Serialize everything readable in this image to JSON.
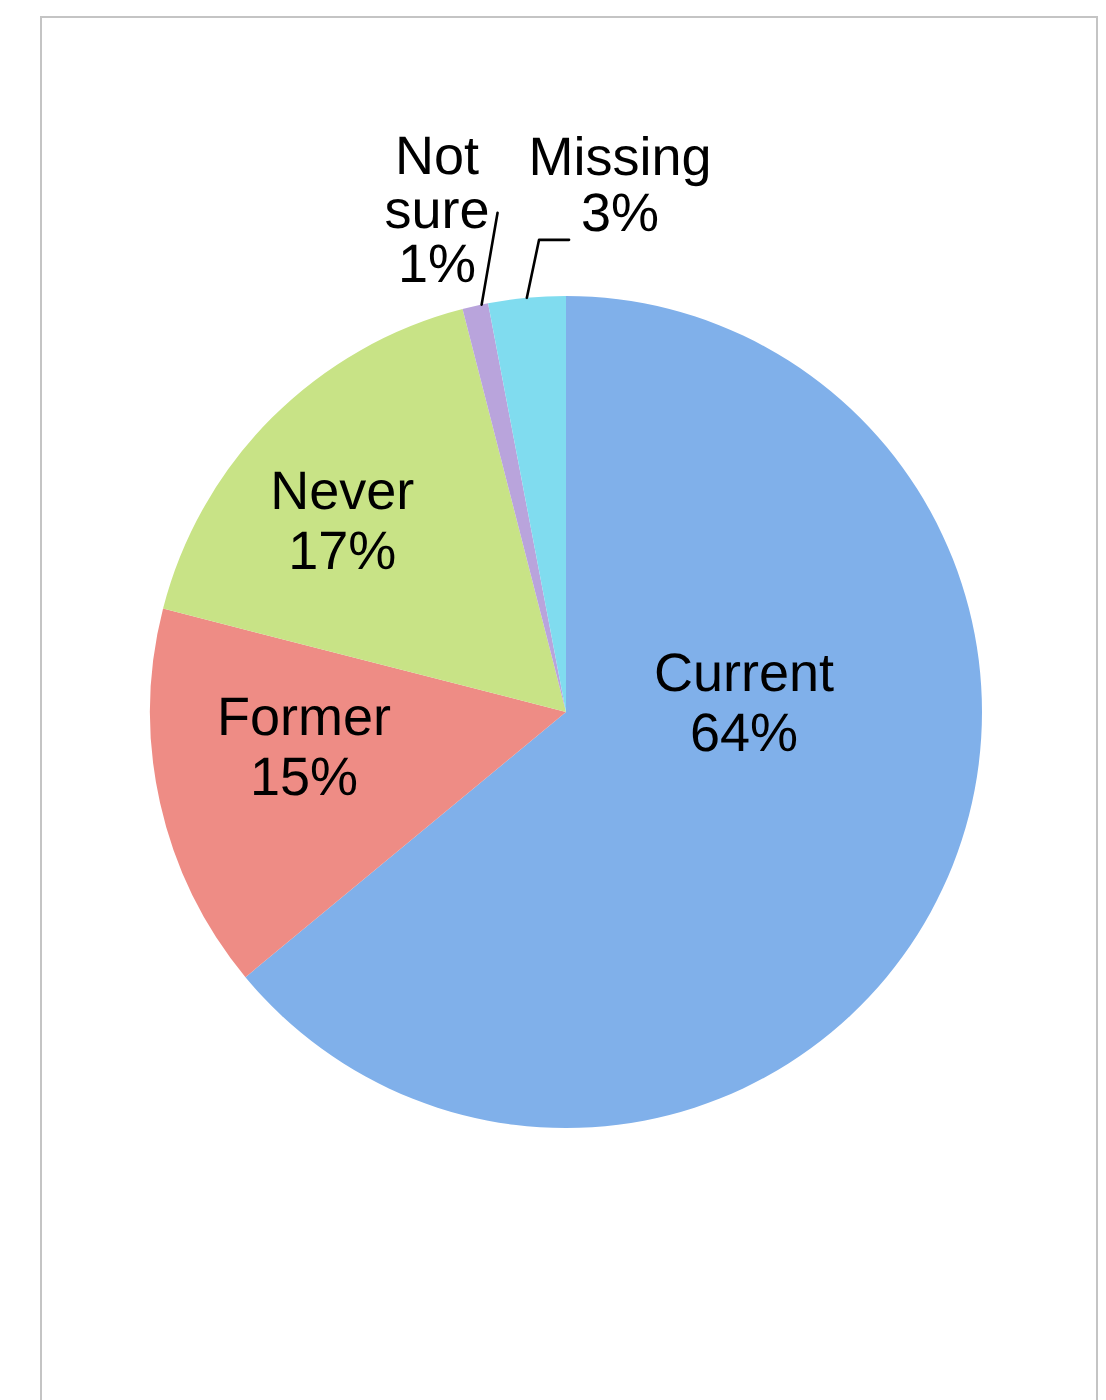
{
  "chart_data": {
    "type": "pie",
    "categories": [
      "Current",
      "Former",
      "Never",
      "Not sure",
      "Missing"
    ],
    "values": [
      64,
      15,
      17,
      1,
      3
    ],
    "colors": [
      "#80b0ea",
      "#ee8c85",
      "#c8e386",
      "#b9a4dc",
      "#80dcef"
    ],
    "value_labels": [
      "64%",
      "15%",
      "17%",
      "1%",
      "3%"
    ]
  }
}
